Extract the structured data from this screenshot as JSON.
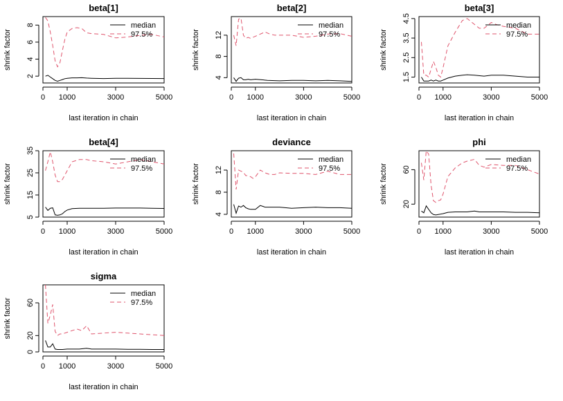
{
  "colors": {
    "median": "#000000",
    "q975": "#DF536B"
  },
  "chart_data": [
    {
      "type": "line",
      "title": "beta[1]",
      "xlabel": "last iteration in chain",
      "ylabel": "shrink factor",
      "xlim": [
        0,
        5000
      ],
      "ylim": [
        1.2,
        9.0
      ],
      "xticks": [
        0,
        1000,
        3000,
        5000
      ],
      "xtick_labels": [
        "0",
        "1000",
        "3000",
        "5000"
      ],
      "yticks": [
        2,
        4,
        6,
        8
      ],
      "ytick_labels": [
        "2",
        "4",
        "6",
        "8"
      ],
      "legend": [
        "median",
        "97.5%"
      ],
      "legend_position": "top-right",
      "series": [
        {
          "name": "median",
          "x": [
            102,
            202,
            302,
            402,
            502,
            602,
            702,
            802,
            902,
            1002,
            1202,
            1402,
            1602,
            1802,
            2002,
            2502,
            3002,
            3502,
            4002,
            4502,
            5000
          ],
          "values": [
            2.0,
            2.1,
            1.9,
            1.7,
            1.5,
            1.4,
            1.5,
            1.6,
            1.7,
            1.75,
            1.8,
            1.8,
            1.82,
            1.78,
            1.75,
            1.72,
            1.75,
            1.75,
            1.74,
            1.73,
            1.72
          ]
        },
        {
          "name": "97.5%",
          "x": [
            102,
            202,
            302,
            402,
            502,
            602,
            702,
            802,
            902,
            1002,
            1202,
            1402,
            1602,
            1802,
            2002,
            2502,
            3002,
            3502,
            4002,
            4502,
            5000
          ],
          "values": [
            8.9,
            8.5,
            7.2,
            5.6,
            3.8,
            3.1,
            3.6,
            5.0,
            6.3,
            7.2,
            7.6,
            7.7,
            7.6,
            7.1,
            7.0,
            6.9,
            6.5,
            6.6,
            6.8,
            6.9,
            6.6
          ]
        }
      ]
    },
    {
      "type": "line",
      "title": "beta[2]",
      "xlabel": "last iteration in chain",
      "ylabel": "shrink factor",
      "xlim": [
        0,
        5000
      ],
      "ylim": [
        3.0,
        15.5
      ],
      "xticks": [
        0,
        1000,
        3000,
        5000
      ],
      "xtick_labels": [
        "0",
        "1000",
        "3000",
        "5000"
      ],
      "yticks": [
        4,
        8,
        12
      ],
      "ytick_labels": [
        "4",
        "8",
        "12"
      ],
      "legend": [
        "median",
        "97.5%"
      ],
      "legend_position": "top-right",
      "series": [
        {
          "name": "median",
          "x": [
            102,
            202,
            302,
            402,
            502,
            602,
            702,
            802,
            1002,
            1502,
            2002,
            2502,
            3002,
            3502,
            4002,
            4502,
            5000
          ],
          "values": [
            4.0,
            3.3,
            3.9,
            4.0,
            3.6,
            3.6,
            3.7,
            3.6,
            3.7,
            3.5,
            3.4,
            3.5,
            3.5,
            3.4,
            3.5,
            3.4,
            3.3
          ]
        },
        {
          "name": "97.5%",
          "x": [
            102,
            202,
            302,
            402,
            502,
            602,
            702,
            802,
            1002,
            1202,
            1402,
            1602,
            1802,
            2002,
            2502,
            3002,
            3502,
            4002,
            4502,
            5000
          ],
          "values": [
            12.0,
            10.0,
            15.0,
            15.2,
            12.0,
            11.4,
            11.6,
            11.4,
            11.8,
            12.2,
            12.6,
            12.2,
            12.0,
            12.0,
            12.0,
            11.6,
            11.8,
            12.2,
            12.3,
            11.8
          ]
        }
      ]
    },
    {
      "type": "line",
      "title": "beta[3]",
      "xlabel": "last iteration in chain",
      "ylabel": "shrink factor",
      "xlim": [
        0,
        5000
      ],
      "ylim": [
        1.2,
        4.6
      ],
      "xticks": [
        0,
        1000,
        3000,
        5000
      ],
      "xtick_labels": [
        "0",
        "1000",
        "3000",
        "5000"
      ],
      "yticks": [
        1.5,
        2.5,
        3.5,
        4.5
      ],
      "ytick_labels": [
        "1.5",
        "2.5",
        "3.5",
        "4.5"
      ],
      "legend": [
        "median",
        "97.5%"
      ],
      "legend_position": "top-right",
      "series": [
        {
          "name": "median",
          "x": [
            102,
            202,
            302,
            402,
            502,
            602,
            702,
            802,
            902,
            1002,
            1202,
            1502,
            1802,
            2002,
            2302,
            2702,
            3002,
            3502,
            4002,
            4502,
            5000
          ],
          "values": [
            1.5,
            1.3,
            1.3,
            1.3,
            1.35,
            1.3,
            1.35,
            1.3,
            1.3,
            1.35,
            1.45,
            1.55,
            1.6,
            1.62,
            1.6,
            1.55,
            1.6,
            1.6,
            1.55,
            1.5,
            1.5
          ]
        },
        {
          "name": "97.5%",
          "x": [
            102,
            202,
            302,
            402,
            502,
            602,
            702,
            802,
            902,
            1002,
            1202,
            1502,
            1802,
            2002,
            2302,
            2502,
            2702,
            3002,
            3202,
            3502,
            4002,
            4502,
            5000
          ],
          "values": [
            3.3,
            1.6,
            1.6,
            1.5,
            1.9,
            2.3,
            2.0,
            1.6,
            1.5,
            2.0,
            3.1,
            3.8,
            4.4,
            4.5,
            4.2,
            4.0,
            4.0,
            4.3,
            4.2,
            4.1,
            4.0,
            3.7,
            3.7
          ]
        }
      ]
    },
    {
      "type": "line",
      "title": "beta[4]",
      "xlabel": "last iteration in chain",
      "ylabel": "shrink factor",
      "xlim": [
        0,
        5000
      ],
      "ylim": [
        5,
        35
      ],
      "xticks": [
        0,
        1000,
        3000,
        5000
      ],
      "xtick_labels": [
        "0",
        "1000",
        "3000",
        "5000"
      ],
      "yticks": [
        5,
        15,
        25,
        35
      ],
      "ytick_labels": [
        "5",
        "15",
        "25",
        "35"
      ],
      "legend": [
        "median",
        "97.5%"
      ],
      "legend_position": "top-right",
      "series": [
        {
          "name": "median",
          "x": [
            102,
            202,
            302,
            402,
            502,
            602,
            702,
            802,
            902,
            1002,
            1202,
            1502,
            2002,
            2502,
            3002,
            3502,
            4002,
            4502,
            5000
          ],
          "values": [
            9.5,
            8.0,
            9.0,
            9.2,
            6.0,
            5.8,
            6.0,
            6.5,
            7.5,
            8.2,
            8.8,
            9.0,
            9.0,
            9.0,
            9.1,
            9.1,
            9.1,
            9.0,
            8.9
          ]
        },
        {
          "name": "97.5%",
          "x": [
            102,
            202,
            302,
            402,
            502,
            602,
            702,
            802,
            902,
            1002,
            1202,
            1502,
            1802,
            2002,
            2502,
            3002,
            3502,
            4002,
            4502,
            5000
          ],
          "values": [
            26.0,
            30.0,
            34.5,
            30.0,
            24.0,
            21.0,
            21.0,
            22.0,
            24.0,
            26.0,
            30.0,
            31.0,
            31.0,
            30.5,
            30.0,
            29.0,
            30.0,
            31.0,
            30.0,
            29.0
          ]
        }
      ]
    },
    {
      "type": "line",
      "title": "deviance",
      "xlabel": "last iteration in chain",
      "ylabel": "shrink factor",
      "xlim": [
        0,
        5000
      ],
      "ylim": [
        3.5,
        15.5
      ],
      "xticks": [
        0,
        1000,
        3000,
        5000
      ],
      "xtick_labels": [
        "0",
        "1000",
        "3000",
        "5000"
      ],
      "yticks": [
        4,
        8,
        12
      ],
      "ytick_labels": [
        "4",
        "8",
        "12"
      ],
      "legend": [
        "median",
        "97.5%"
      ],
      "legend_position": "top-right",
      "series": [
        {
          "name": "median",
          "x": [
            102,
            202,
            302,
            402,
            502,
            602,
            702,
            802,
            1002,
            1202,
            1402,
            1602,
            2002,
            2502,
            3002,
            3502,
            4002,
            4502,
            5000
          ],
          "values": [
            5.8,
            4.2,
            5.5,
            5.3,
            5.6,
            5.2,
            5.0,
            4.9,
            4.9,
            5.6,
            5.3,
            5.3,
            5.3,
            5.1,
            5.2,
            5.3,
            5.2,
            5.2,
            5.1
          ]
        },
        {
          "name": "97.5%",
          "x": [
            102,
            202,
            302,
            402,
            502,
            602,
            702,
            802,
            902,
            1002,
            1202,
            1402,
            1602,
            1802,
            2002,
            2502,
            3002,
            3502,
            4002,
            4502,
            5000
          ],
          "values": [
            15.0,
            8.5,
            12.0,
            11.8,
            11.6,
            11.0,
            11.0,
            10.8,
            10.5,
            10.8,
            12.0,
            11.5,
            11.2,
            11.2,
            11.5,
            11.4,
            11.4,
            11.2,
            11.8,
            11.2,
            11.2
          ]
        }
      ]
    },
    {
      "type": "line",
      "title": "phi",
      "xlabel": "last iteration in chain",
      "ylabel": "shrink factor",
      "xlim": [
        0,
        5000
      ],
      "ylim": [
        5,
        82
      ],
      "xticks": [
        0,
        1000,
        3000,
        5000
      ],
      "xtick_labels": [
        "0",
        "1000",
        "3000",
        "5000"
      ],
      "yticks": [
        20,
        60
      ],
      "ytick_labels": [
        "20",
        "60"
      ],
      "legend": [
        "median",
        "97.5%"
      ],
      "legend_position": "top-right",
      "series": [
        {
          "name": "median",
          "x": [
            102,
            202,
            302,
            402,
            502,
            602,
            702,
            802,
            1002,
            1202,
            1502,
            2002,
            2302,
            2502,
            3002,
            3502,
            4002,
            4502,
            5000
          ],
          "values": [
            12.0,
            10.0,
            18.0,
            14.0,
            10.0,
            8.0,
            7.5,
            8.0,
            9.0,
            10.5,
            11.0,
            11.0,
            12.0,
            11.0,
            11.0,
            11.0,
            10.5,
            10.5,
            10.0
          ]
        },
        {
          "name": "97.5%",
          "x": [
            102,
            202,
            302,
            402,
            502,
            602,
            702,
            802,
            902,
            1002,
            1202,
            1502,
            1802,
            2002,
            2302,
            2502,
            2702,
            3002,
            3502,
            4002,
            4502,
            5000
          ],
          "values": [
            68.0,
            48.0,
            82.0,
            78.0,
            42.0,
            24.0,
            22.0,
            24.0,
            25.0,
            32.0,
            52.0,
            62.0,
            68.0,
            70.0,
            72.0,
            65.0,
            63.0,
            66.0,
            65.0,
            65.0,
            60.0,
            55.0
          ]
        }
      ]
    },
    {
      "type": "line",
      "title": "sigma",
      "xlabel": "last iteration in chain",
      "ylabel": "shrink factor",
      "xlim": [
        0,
        5000
      ],
      "ylim": [
        0,
        82
      ],
      "xticks": [
        0,
        1000,
        3000,
        5000
      ],
      "xtick_labels": [
        "0",
        "1000",
        "3000",
        "5000"
      ],
      "yticks": [
        0,
        20,
        60
      ],
      "ytick_labels": [
        "0",
        "20",
        "60"
      ],
      "legend": [
        "median",
        "97.5%"
      ],
      "legend_position": "top-right",
      "series": [
        {
          "name": "median",
          "x": [
            102,
            202,
            302,
            402,
            502,
            602,
            702,
            802,
            1002,
            1202,
            1502,
            1802,
            2002,
            2502,
            3002,
            3502,
            4002,
            4502,
            5000
          ],
          "values": [
            14.0,
            6.0,
            6.0,
            10.0,
            3.5,
            3.0,
            3.0,
            3.0,
            3.5,
            3.5,
            3.5,
            4.5,
            3.5,
            3.5,
            3.5,
            3.2,
            3.2,
            3.0,
            3.0
          ]
        },
        {
          "name": "97.5%",
          "x": [
            102,
            202,
            302,
            402,
            502,
            602,
            702,
            802,
            1002,
            1202,
            1402,
            1602,
            1802,
            2002,
            2502,
            3002,
            3502,
            4002,
            4502,
            5000
          ],
          "values": [
            82.0,
            35.0,
            45.0,
            58.0,
            25.0,
            20.0,
            22.0,
            22.0,
            24.0,
            26.0,
            28.0,
            26.0,
            32.0,
            22.0,
            23.0,
            24.0,
            23.0,
            22.0,
            21.0,
            20.0
          ]
        }
      ]
    }
  ]
}
